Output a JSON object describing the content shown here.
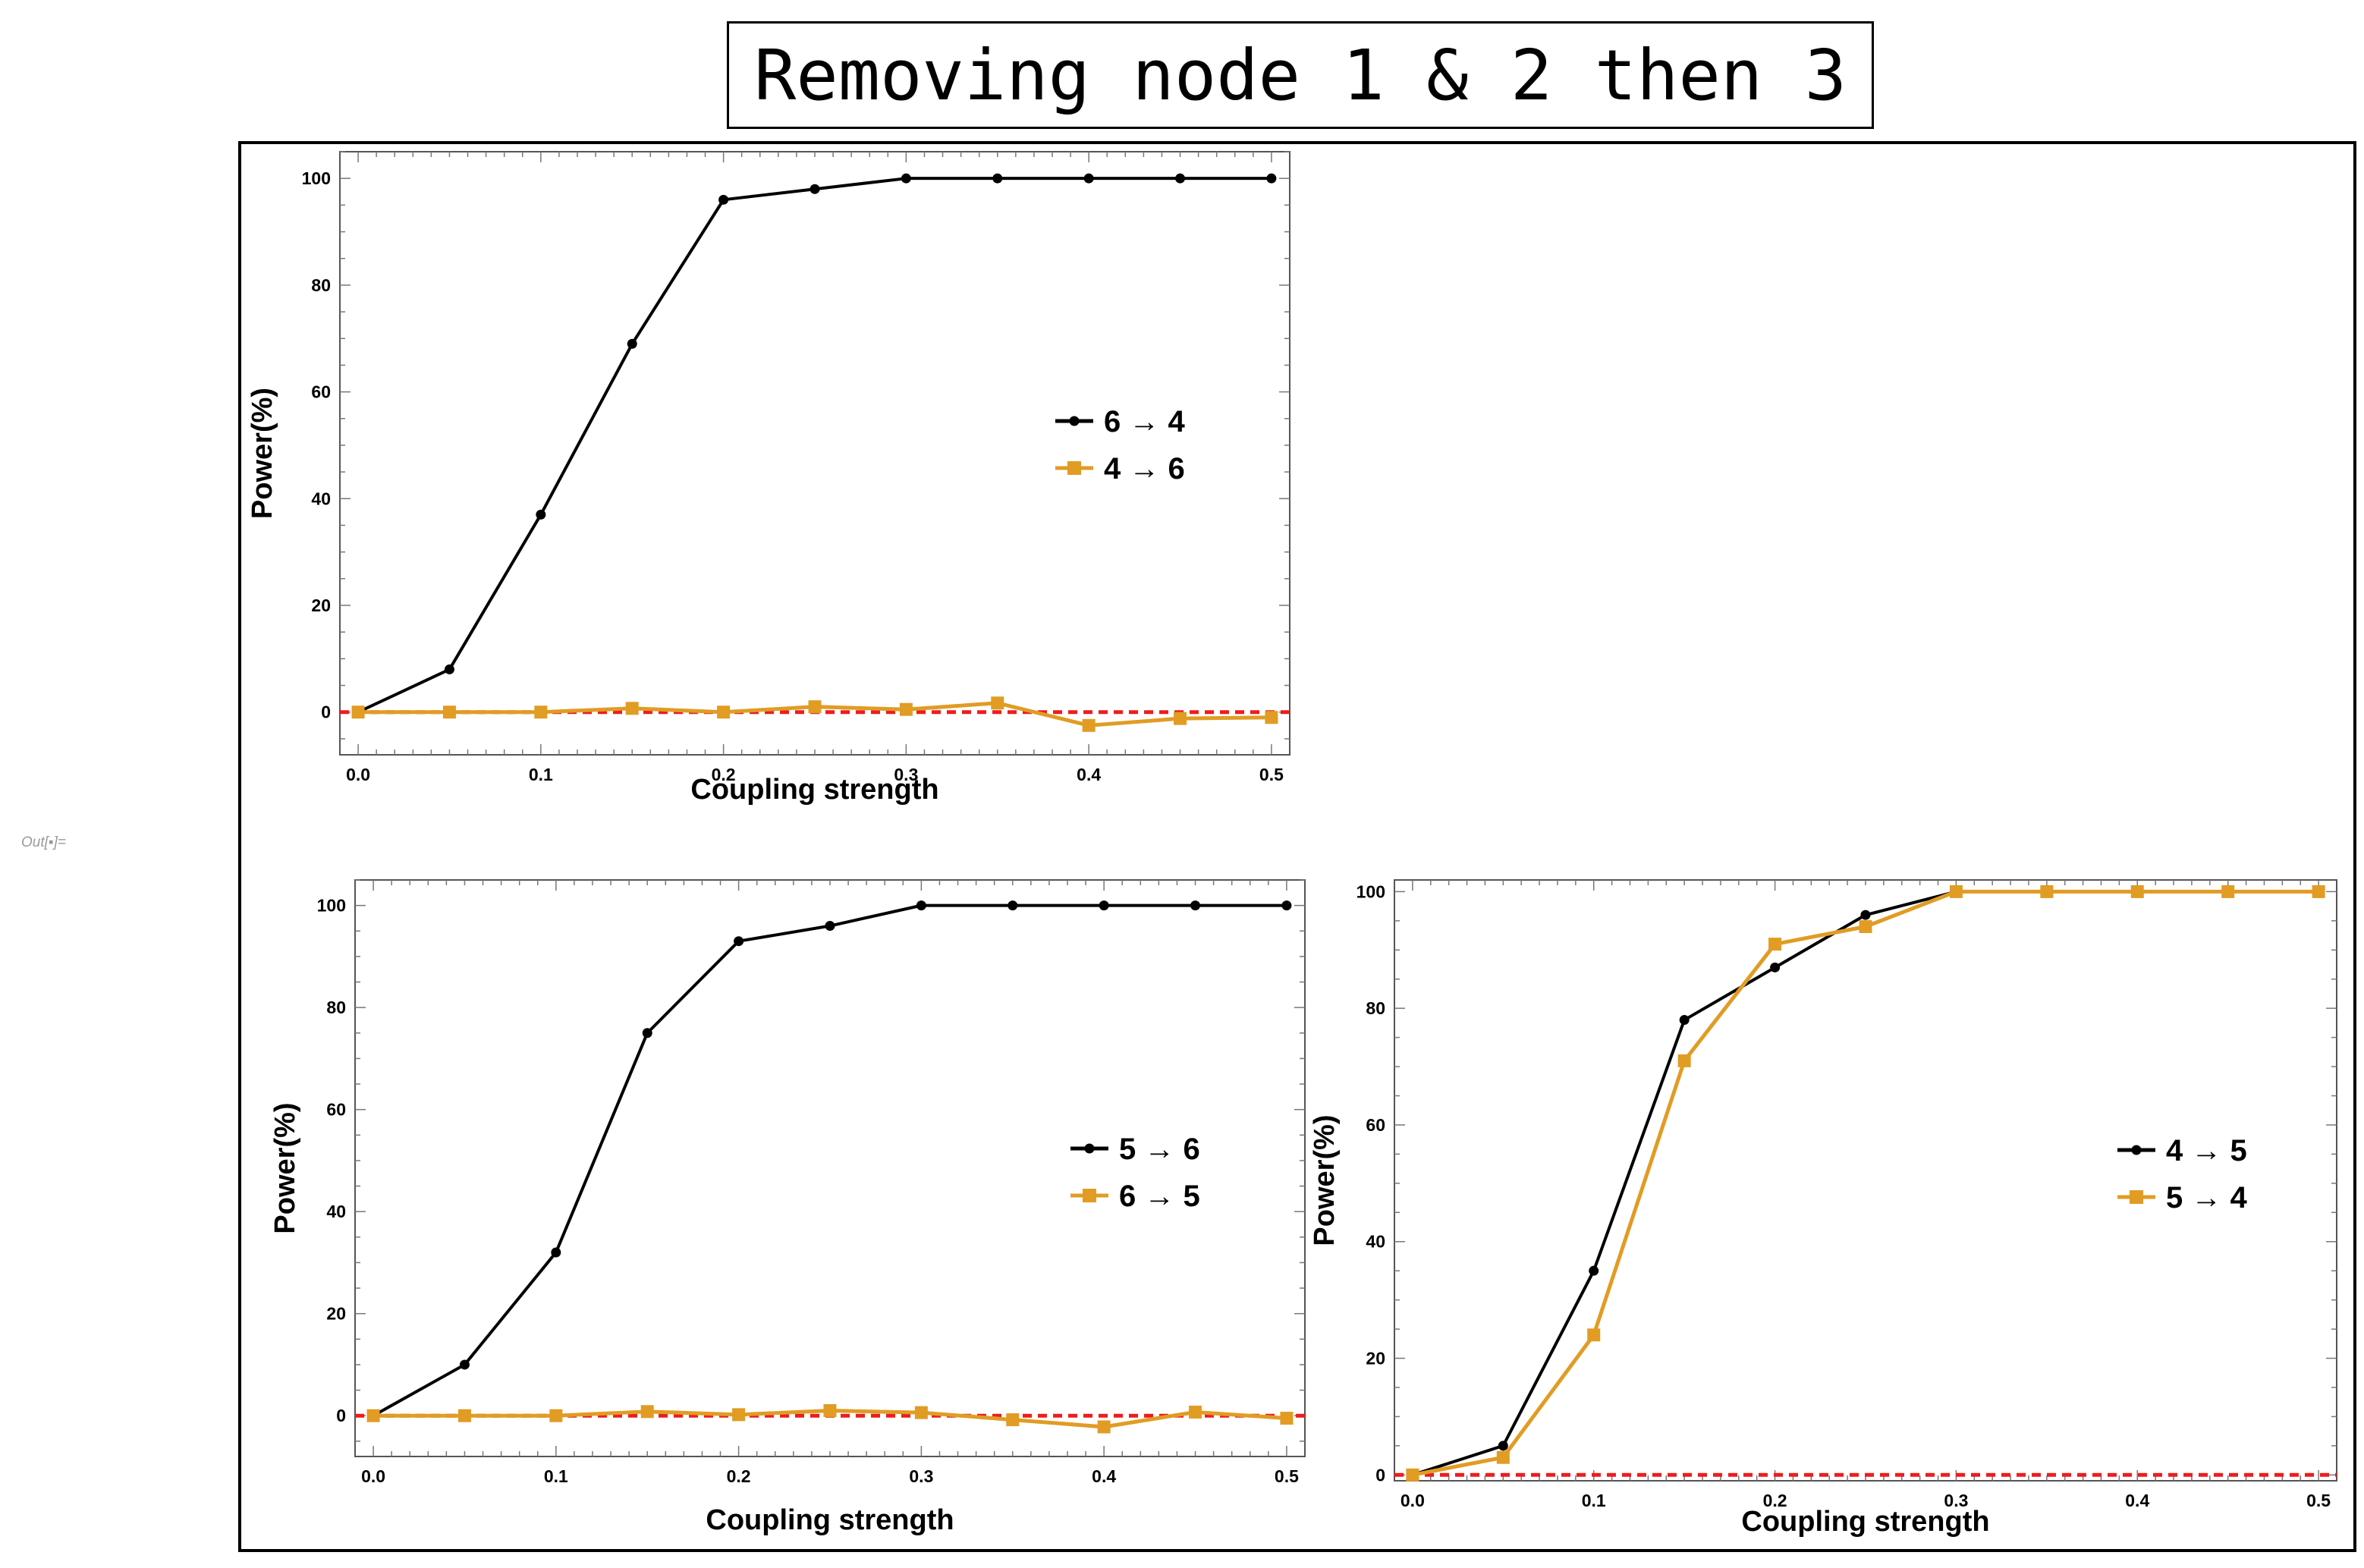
{
  "title": "Removing node 1 & 2 then 3",
  "out_label": "Out[▪]=",
  "colors": {
    "black_series": "#000000",
    "orange_series": "#e19c24",
    "zero_line": "#ee1c1c"
  },
  "chart_data": [
    {
      "type": "line",
      "title": "",
      "xlabel": "Coupling strength",
      "ylabel": "Power(%)",
      "xlim": [
        -0.01,
        0.51
      ],
      "ylim": [
        -8,
        105
      ],
      "x_ticks": [
        "0.0",
        "0.1",
        "0.2",
        "0.3",
        "0.4",
        "0.5"
      ],
      "y_ticks": [
        "0",
        "20",
        "40",
        "60",
        "80",
        "100"
      ],
      "legend_position": "right",
      "x": [
        0,
        0.05,
        0.1,
        0.15,
        0.2,
        0.25,
        0.3,
        0.35,
        0.4,
        0.45,
        0.5
      ],
      "series": [
        {
          "name": "6 → 4",
          "marker": "circle",
          "color": "#000000",
          "values": [
            0,
            8,
            37,
            69,
            96,
            98,
            100,
            100,
            100,
            100,
            100
          ]
        },
        {
          "name": "4 → 6",
          "marker": "square",
          "color": "#e19c24",
          "values": [
            0,
            0,
            0,
            0.7,
            0,
            1,
            0.5,
            1.7,
            -2.5,
            -1.2,
            -1
          ]
        }
      ],
      "reference_line": 0
    },
    {
      "type": "line",
      "title": "",
      "xlabel": "Coupling strength",
      "ylabel": "Power(%)",
      "xlim": [
        -0.01,
        0.51
      ],
      "ylim": [
        -8,
        105
      ],
      "x_ticks": [
        "0.0",
        "0.1",
        "0.2",
        "0.3",
        "0.4",
        "0.5"
      ],
      "y_ticks": [
        "0",
        "20",
        "40",
        "60",
        "80",
        "100"
      ],
      "legend_position": "right",
      "x": [
        0,
        0.05,
        0.1,
        0.15,
        0.2,
        0.25,
        0.3,
        0.35,
        0.4,
        0.45,
        0.5
      ],
      "series": [
        {
          "name": "5 → 6",
          "marker": "circle",
          "color": "#000000",
          "values": [
            0,
            10,
            32,
            75,
            93,
            96,
            100,
            100,
            100,
            100,
            100
          ]
        },
        {
          "name": "6 → 5",
          "marker": "square",
          "color": "#e19c24",
          "values": [
            0,
            0,
            0,
            0.8,
            0.2,
            1,
            0.6,
            -0.8,
            -2.2,
            0.7,
            -0.5
          ]
        }
      ],
      "reference_line": 0
    },
    {
      "type": "line",
      "title": "",
      "xlabel": "Coupling strength",
      "ylabel": "Power(%)",
      "xlim": [
        -0.01,
        0.51
      ],
      "ylim": [
        -1,
        102
      ],
      "x_ticks": [
        "0.0",
        "0.1",
        "0.2",
        "0.3",
        "0.4",
        "0.5"
      ],
      "y_ticks": [
        "0",
        "20",
        "40",
        "60",
        "80",
        "100"
      ],
      "legend_position": "right",
      "x": [
        0,
        0.05,
        0.1,
        0.15,
        0.2,
        0.25,
        0.3,
        0.35,
        0.4,
        0.45,
        0.5
      ],
      "series": [
        {
          "name": "4 → 5",
          "marker": "circle",
          "color": "#000000",
          "values": [
            0,
            5,
            35,
            78,
            87,
            96,
            100,
            100,
            100,
            100,
            100
          ]
        },
        {
          "name": "5 → 4",
          "marker": "square",
          "color": "#e19c24",
          "values": [
            0,
            3,
            24,
            71,
            91,
            94,
            100,
            100,
            100,
            100,
            100
          ]
        }
      ],
      "reference_line": 0
    }
  ]
}
